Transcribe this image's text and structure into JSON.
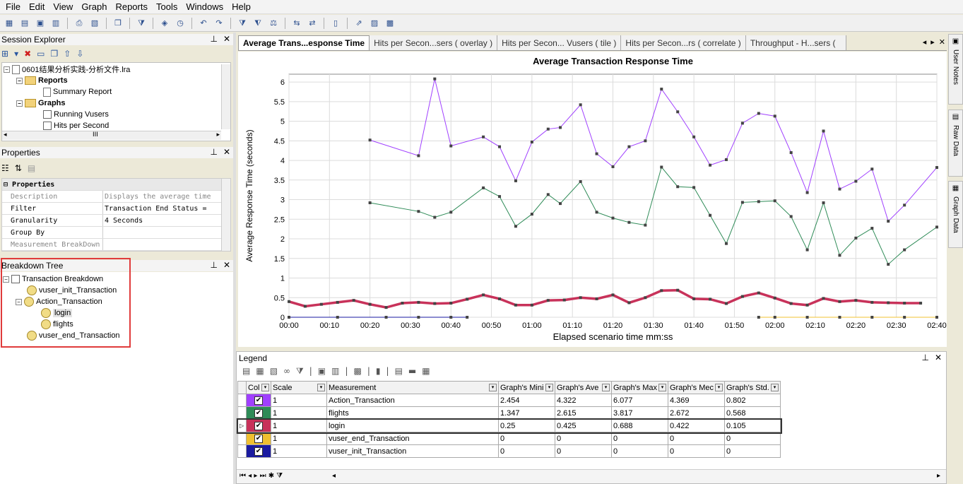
{
  "menu": [
    "File",
    "Edit",
    "View",
    "Graph",
    "Reports",
    "Tools",
    "Windows",
    "Help"
  ],
  "session_explorer": {
    "title": "Session Explorer",
    "file": "0601结果分析实践-分析文件.lra",
    "reports": "Reports",
    "summary": "Summary Report",
    "graphs": "Graphs",
    "running": "Running Vusers",
    "hits": "Hits per Second",
    "scroll_marker": "III"
  },
  "properties": {
    "title": "Properties",
    "header": "Properties",
    "rows": [
      {
        "k": "Description",
        "v": "Displays the average time"
      },
      {
        "k": "Filter",
        "v": "Transaction End Status ="
      },
      {
        "k": "Granularity",
        "v": "4 Seconds"
      },
      {
        "k": "Group By",
        "v": ""
      },
      {
        "k": "Measurement BreakDown",
        "v": ""
      }
    ]
  },
  "breakdown": {
    "title": "Breakdown Tree",
    "root": "Transaction Breakdown",
    "init": "vuser_init_Transaction",
    "action": "Action_Transaction",
    "login": "login",
    "flights": "flights",
    "end": "vuser_end_Transaction"
  },
  "tabs": [
    "Average Trans...esponse Time",
    "Hits per Secon...sers ( overlay )",
    "Hits per Secon... Vusers ( tile )",
    "Hits per Secon...rs ( correlate )",
    "Throughput - H...sers ("
  ],
  "right_sidebar": [
    "User Notes",
    "Raw Data",
    "Graph Data"
  ],
  "legend": {
    "title": "Legend",
    "headers": [
      "Col",
      "Scale",
      "Measurement",
      "Graph's Mini",
      "Graph's Ave",
      "Graph's Max",
      "Graph's Mec",
      "Graph's Std."
    ],
    "rows": [
      {
        "color": "#a040ff",
        "scale": "1",
        "name": "Action_Transaction",
        "min": "2.454",
        "avg": "4.322",
        "max": "6.077",
        "med": "4.369",
        "std": "0.802"
      },
      {
        "color": "#2e8b57",
        "scale": "1",
        "name": "flights",
        "min": "1.347",
        "avg": "2.615",
        "max": "3.817",
        "med": "2.672",
        "std": "0.568"
      },
      {
        "color": "#c8325a",
        "scale": "1",
        "name": "login",
        "min": "0.25",
        "avg": "0.425",
        "max": "0.688",
        "med": "0.422",
        "std": "0.105"
      },
      {
        "color": "#f0c030",
        "scale": "1",
        "name": "vuser_end_Transaction",
        "min": "0",
        "avg": "0",
        "max": "0",
        "med": "0",
        "std": "0"
      },
      {
        "color": "#1a1aa0",
        "scale": "1",
        "name": "vuser_init_Transaction",
        "min": "0",
        "avg": "0",
        "max": "0",
        "med": "0",
        "std": "0"
      }
    ]
  },
  "chart_data": {
    "type": "line",
    "title": "Average Transaction Response Time",
    "xlabel": "Elapsed scenario time mm:ss",
    "ylabel": "Average Response Time (seconds)",
    "ylim": [
      0,
      6.2
    ],
    "xlim": [
      0,
      160
    ],
    "yticks": [
      "0",
      "0.5",
      "1",
      "1.5",
      "2",
      "2.5",
      "3",
      "3.5",
      "4",
      "4.5",
      "5",
      "5.5",
      "6"
    ],
    "xticks": [
      "00:00",
      "00:10",
      "00:20",
      "00:30",
      "00:40",
      "00:50",
      "01:00",
      "01:10",
      "01:20",
      "01:30",
      "01:40",
      "01:50",
      "02:00",
      "02:10",
      "02:20",
      "02:30",
      "02:40"
    ],
    "grid": true,
    "series": [
      {
        "name": "Action_Transaction",
        "color": "#a040ff",
        "x": [
          20,
          32,
          36,
          40,
          48,
          52,
          56,
          60,
          64,
          67,
          72,
          76,
          80,
          84,
          88,
          92,
          96,
          100,
          104,
          108,
          112,
          116,
          120,
          124,
          128,
          132,
          136,
          140,
          144,
          148,
          152,
          160
        ],
        "y": [
          4.52,
          4.12,
          6.08,
          4.37,
          4.6,
          4.35,
          3.48,
          4.47,
          4.8,
          4.84,
          5.42,
          4.17,
          3.84,
          4.35,
          4.5,
          5.82,
          5.24,
          4.6,
          3.88,
          4.02,
          4.95,
          5.2,
          5.13,
          4.2,
          3.18,
          4.75,
          3.27,
          3.47,
          3.78,
          2.45,
          2.86,
          3.82
        ]
      },
      {
        "name": "flights",
        "color": "#2e8b57",
        "x": [
          20,
          32,
          36,
          40,
          48,
          52,
          56,
          60,
          64,
          67,
          72,
          76,
          80,
          84,
          88,
          92,
          96,
          100,
          104,
          108,
          112,
          116,
          120,
          124,
          128,
          132,
          136,
          140,
          144,
          148,
          152,
          160
        ],
        "y": [
          2.92,
          2.7,
          2.55,
          2.68,
          3.3,
          3.08,
          2.32,
          2.63,
          3.13,
          2.9,
          3.46,
          2.68,
          2.53,
          2.42,
          2.35,
          3.83,
          3.33,
          3.31,
          2.6,
          1.88,
          2.93,
          2.95,
          2.97,
          2.57,
          1.72,
          2.92,
          1.58,
          2.02,
          2.27,
          1.35,
          1.72,
          2.3
        ]
      },
      {
        "name": "login",
        "color": "#c8325a",
        "x": [
          0,
          4,
          8,
          12,
          16,
          20,
          24,
          28,
          32,
          36,
          40,
          44,
          48,
          52,
          56,
          60,
          64,
          68,
          72,
          76,
          80,
          84,
          88,
          92,
          96,
          100,
          104,
          108,
          112,
          116,
          120,
          124,
          128,
          132,
          136,
          140,
          144,
          148,
          152,
          156
        ],
        "y": [
          0.4,
          0.28,
          0.33,
          0.38,
          0.43,
          0.33,
          0.25,
          0.36,
          0.38,
          0.35,
          0.36,
          0.46,
          0.57,
          0.47,
          0.31,
          0.31,
          0.43,
          0.44,
          0.5,
          0.47,
          0.57,
          0.37,
          0.5,
          0.68,
          0.69,
          0.47,
          0.46,
          0.35,
          0.53,
          0.62,
          0.49,
          0.35,
          0.31,
          0.48,
          0.4,
          0.43,
          0.38,
          0.37,
          0.36,
          0.36
        ]
      },
      {
        "name": "vuser_end_Transaction",
        "color": "#f0c030",
        "x": [
          116,
          120,
          128,
          136,
          144,
          152,
          160
        ],
        "y": [
          0,
          0,
          0,
          0,
          0,
          0,
          0
        ]
      },
      {
        "name": "vuser_init_Transaction",
        "color": "#1a1aa0",
        "x": [
          0,
          12,
          24,
          32,
          40,
          44
        ],
        "y": [
          0,
          0,
          0,
          0,
          0,
          0
        ]
      }
    ]
  }
}
